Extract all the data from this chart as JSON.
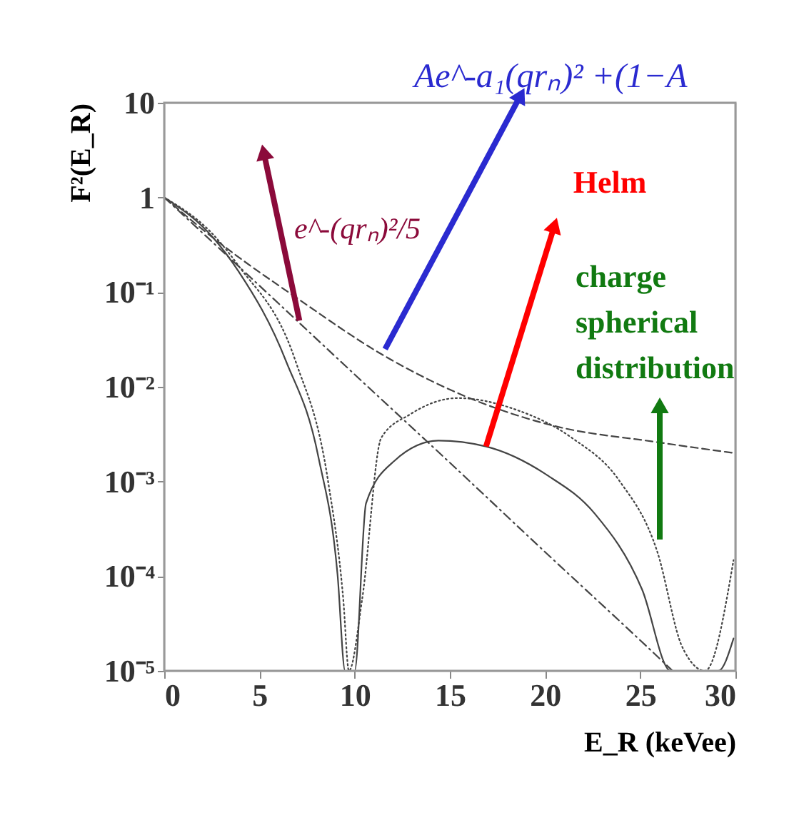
{
  "chart_data": {
    "type": "line",
    "log": "y",
    "xlabel": "E_R (keVee)",
    "ylabel": "F²(E_R)",
    "x": [
      0,
      2.6,
      3.9,
      6.4,
      8.1,
      9.1,
      9.5,
      10.0,
      10.6,
      12.1,
      14.4,
      16.9,
      20.1,
      22.6,
      25.1,
      26.6,
      29.1,
      29.9
    ],
    "series": [
      {
        "color": "#444444",
        "line_style": "solid",
        "values": [
          1,
          0.37,
          0.166,
          0.0186,
          0.0018,
          0.000105,
          1e-05,
          1e-05,
          0.00059,
          0.00166,
          0.0027,
          0.00234,
          0.00117,
          0.00046,
          7.2e-05,
          1e-05,
          1e-05,
          2.2e-05
        ]
      },
      {
        "color": "#444444",
        "line_style": "dotted",
        "x": [
          0,
          2.6,
          3.9,
          6.9,
          8.6,
          9.4,
          9.7,
          10.4,
          11.4,
          12.9,
          15.4,
          18.4,
          21.4,
          23.9,
          25.9,
          27.2,
          28.4,
          29.9
        ],
        "values": [
          1,
          0.4,
          0.19,
          0.0186,
          0.00102,
          5.8e-05,
          1e-05,
          5.8e-05,
          0.0029,
          0.0051,
          0.0076,
          0.0058,
          0.0029,
          0.00102,
          0.00018,
          1.8e-05,
          1e-05,
          0.000148
        ]
      },
      {
        "color": "#444444",
        "line_style": "dashed",
        "x": [
          0,
          2.6,
          7.1,
          11.6,
          15.9,
          20.4,
          25.9,
          29.9
        ],
        "values": [
          1,
          0.37,
          0.083,
          0.021,
          0.0078,
          0.0039,
          0.0026,
          0.002
        ]
      },
      {
        "color": "#444444",
        "line_style": "dashdot",
        "x": [
          0,
          5,
          10,
          15,
          20,
          25,
          26.7
        ],
        "values": [
          1,
          0.117,
          0.0135,
          0.00158,
          0.00018,
          2.1e-05,
          1e-05
        ]
      }
    ],
    "xlim": [
      0,
      30
    ],
    "xticks": [
      0,
      5,
      10,
      15,
      20,
      25,
      30
    ],
    "ylim": [
      1e-05,
      10
    ],
    "yticks": [
      {
        "value": 10,
        "label": "10"
      },
      {
        "value": 1,
        "label": "1"
      },
      {
        "value": 0.1,
        "label": "10⁻¹"
      },
      {
        "value": 0.01,
        "label": "10⁻²"
      },
      {
        "value": 0.001,
        "label": "10⁻³"
      },
      {
        "value": 0.0001,
        "label": "10⁻⁴"
      },
      {
        "value": 1e-05,
        "label": "10⁻⁵"
      }
    ],
    "annotations": [
      {
        "text": "e^-(qrₙ)²/5",
        "x": 7.1,
        "y": 0.05
      },
      {
        "text": "Ae^-a₁(qrₙ)² +(1−A",
        "x": 11.6,
        "y": 0.025
      },
      {
        "text": "Helm",
        "x": 16.9,
        "y": 0.00234
      },
      "charge\nspherical\ndistribution"
    ],
    "grid": false
  }
}
